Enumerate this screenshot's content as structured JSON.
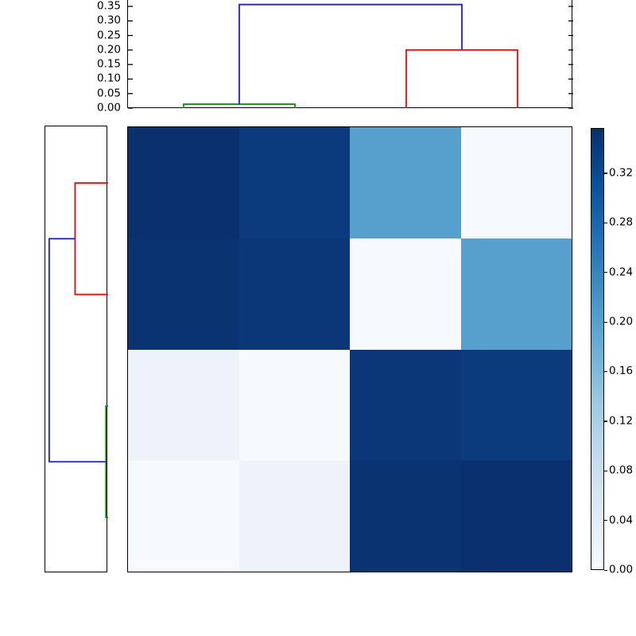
{
  "figure": {
    "background": "#ffffff",
    "kind": "clustered-heatmap-with-dendrograms"
  },
  "chart_data": {
    "type": "heatmap",
    "title": "",
    "xlabel": "",
    "ylabel": "",
    "grid": false,
    "matrix_values_rows_top_to_bottom": [
      [
        0.355,
        0.325,
        0.2,
        0.0
      ],
      [
        0.348,
        0.338,
        0.0,
        0.2
      ],
      [
        0.012,
        0.0,
        0.338,
        0.325
      ],
      [
        0.0,
        0.012,
        0.348,
        0.355
      ]
    ],
    "cell_colors": [
      [
        "#0a316e",
        "#0c3b7d",
        "#57a0ce",
        "#f6f9fe"
      ],
      [
        "#0a3371",
        "#0b3677",
        "#f6f9fe",
        "#57a0ce"
      ],
      [
        "#eef2fa",
        "#f6f9fe",
        "#0b3677",
        "#0c3b7d"
      ],
      [
        "#f6f9fe",
        "#eef2fa",
        "#0a3371",
        "#0a316e"
      ]
    ],
    "colormap_name": "Blues",
    "vmin": 0.0,
    "vmax": 0.3565,
    "colormap_stops_bottom_to_top": [
      "#f7fbff",
      "#deebf7",
      "#c6dbef",
      "#9ecae1",
      "#6baed6",
      "#4292c6",
      "#2171b5",
      "#08519c",
      "#08306b"
    ],
    "colorbar": {
      "position": "right",
      "tick_labels": [
        "0.00",
        "0.04",
        "0.08",
        "0.12",
        "0.16",
        "0.20",
        "0.24",
        "0.28",
        "0.32"
      ]
    },
    "top_dendrogram": {
      "axis_tick_labels": [
        "0.35",
        "0.30",
        "0.25",
        "0.20",
        "0.15",
        "0.10",
        "0.05",
        "0.00"
      ],
      "axis_max": 0.372,
      "tick_sides": [
        "left",
        "right"
      ],
      "links": [
        {
          "name": "green-cluster-link",
          "color": "#009a00",
          "u1": 0,
          "u2": 1,
          "height": 0.0135,
          "base1": 0,
          "base2": 0
        },
        {
          "name": "red-cluster-link",
          "color": "#ff0000",
          "u1": 2,
          "u2": 3,
          "height": 0.2,
          "base1": 0,
          "base2": 0
        },
        {
          "name": "blue-root-link",
          "color": "#1a1aff",
          "u1": 0.5,
          "u2": 2.5,
          "height": 0.3565,
          "base1": 0.0135,
          "base2": 0.2
        }
      ]
    },
    "left_dendrogram": {
      "axis_tick_labels": [],
      "axis_max": 0.38,
      "links": [
        {
          "name": "red-cluster-link",
          "color": "#ff0000",
          "u1": 0,
          "u2": 1,
          "height": 0.2,
          "base1": 0,
          "base2": 0
        },
        {
          "name": "green-cluster-link",
          "color": "#009a00",
          "u1": 2,
          "u2": 3,
          "height": 0.0135,
          "base1": 0,
          "base2": 0
        },
        {
          "name": "blue-root-link",
          "color": "#1a1aff",
          "u1": 0.5,
          "u2": 2.5,
          "height": 0.3565,
          "base1": 0.2,
          "base2": 0.0135
        }
      ]
    }
  }
}
